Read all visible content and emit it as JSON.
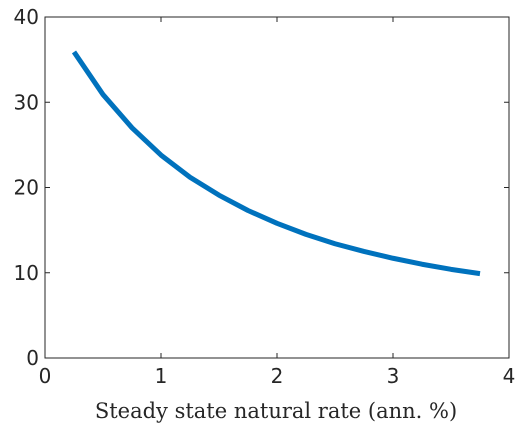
{
  "chart_data": {
    "type": "line",
    "title": "",
    "xlabel": "Steady state natural rate (ann. %)",
    "ylabel": "",
    "xlim": [
      0,
      4
    ],
    "ylim": [
      0,
      40
    ],
    "xticks": [
      0,
      1,
      2,
      3,
      4
    ],
    "yticks": [
      0,
      10,
      20,
      30,
      40
    ],
    "xtick_labels": [
      "0",
      "1",
      "2",
      "3",
      "4"
    ],
    "ytick_labels": [
      "0",
      "10",
      "20",
      "30",
      "40"
    ],
    "grid": false,
    "box": true,
    "series": [
      {
        "color": "#0072BD",
        "x": [
          0.25,
          0.5,
          0.75,
          1.0,
          1.25,
          1.5,
          1.75,
          2.0,
          2.25,
          2.5,
          2.75,
          3.0,
          3.25,
          3.5,
          3.75
        ],
        "y": [
          35.9,
          30.9,
          27.0,
          23.8,
          21.2,
          19.1,
          17.3,
          15.8,
          14.5,
          13.4,
          12.5,
          11.7,
          11.0,
          10.4,
          9.9
        ]
      }
    ]
  }
}
